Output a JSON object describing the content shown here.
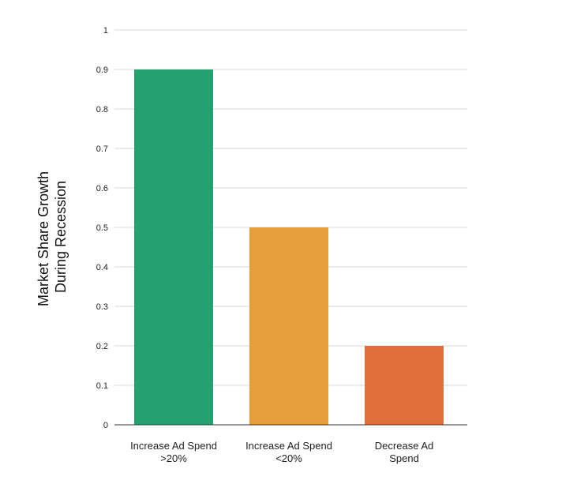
{
  "chart_data": {
    "type": "bar",
    "title": "",
    "xlabel": "",
    "ylabel_lines": [
      "Market Share Growth",
      "During Recession"
    ],
    "categories": [
      [
        "Increase Ad Spend",
        ">20%"
      ],
      [
        "Increase Ad Spend",
        "<20%"
      ],
      [
        "Decrease Ad",
        "Spend"
      ]
    ],
    "values": [
      0.9,
      0.5,
      0.2
    ],
    "bar_colors": [
      "#25A06F",
      "#E59E3A",
      "#E26F3A"
    ],
    "ylim": [
      0,
      1
    ],
    "yticks": [
      {
        "value": 0,
        "label": "0"
      },
      {
        "value": 0.1,
        "label": "0.1"
      },
      {
        "value": 0.2,
        "label": "0.2"
      },
      {
        "value": 0.3,
        "label": "0.3"
      },
      {
        "value": 0.4,
        "label": "0.4"
      },
      {
        "value": 0.5,
        "label": "0.5"
      },
      {
        "value": 0.6,
        "label": "0.6"
      },
      {
        "value": 0.7,
        "label": "0.7"
      },
      {
        "value": 0.8,
        "label": "0.8"
      },
      {
        "value": 0.9,
        "label": "0.9"
      },
      {
        "value": 1,
        "label": "1"
      }
    ],
    "grid": true,
    "grid_color": "#d9d9d9",
    "axis_color": "#333333"
  }
}
